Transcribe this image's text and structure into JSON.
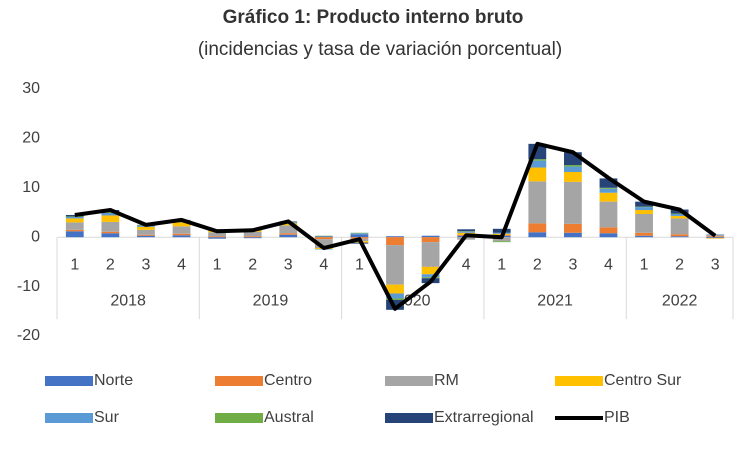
{
  "chart_data": {
    "type": "bar",
    "stacked": true,
    "title": "Gráfico 1: Producto interno bruto",
    "subtitle": "(incidencias y tasa de variación porcentual)",
    "groups": [
      {
        "label": "2018",
        "quarters": [
          "1",
          "2",
          "3",
          "4"
        ]
      },
      {
        "label": "2019",
        "quarters": [
          "1",
          "2",
          "3",
          "4"
        ]
      },
      {
        "label": "2020",
        "quarters": [
          "1",
          "2",
          "3",
          "4"
        ]
      },
      {
        "label": "2021",
        "quarters": [
          "1",
          "2",
          "3",
          "4"
        ]
      },
      {
        "label": "2022",
        "quarters": [
          "1",
          "2",
          "3"
        ]
      }
    ],
    "ylim": [
      -20,
      30
    ],
    "yticks": [
      -20,
      -10,
      0,
      10,
      20,
      30
    ],
    "series": [
      {
        "name": "Norte",
        "color": "#4472c4",
        "values": [
          1.2,
          0.8,
          0.3,
          0.4,
          -0.3,
          -0.2,
          0.5,
          0.2,
          0.6,
          0.2,
          0.3,
          0.3,
          0.3,
          1.0,
          0.9,
          0.8,
          0.3,
          0.2,
          -0.2
        ]
      },
      {
        "name": "Centro",
        "color": "#ed7d31",
        "values": [
          0.3,
          0.3,
          0.2,
          0.3,
          0.2,
          0.2,
          0.3,
          -0.4,
          -0.3,
          -1.6,
          -1.0,
          0.2,
          0.2,
          1.8,
          1.8,
          1.2,
          0.6,
          0.4,
          0.2
        ]
      },
      {
        "name": "RM",
        "color": "#a5a5a5",
        "values": [
          1.5,
          2.0,
          1.0,
          1.5,
          0.8,
          0.9,
          1.6,
          -1.8,
          -0.5,
          -8.0,
          -5.0,
          -0.5,
          -0.8,
          8.5,
          8.5,
          5.2,
          3.8,
          3.2,
          0.3
        ]
      },
      {
        "name": "Centro Sur",
        "color": "#ffc000",
        "values": [
          0.8,
          1.3,
          0.6,
          0.8,
          0.3,
          0.3,
          0.4,
          -0.2,
          -0.3,
          -1.8,
          -1.5,
          0.4,
          0.2,
          2.8,
          2.0,
          1.8,
          0.8,
          0.5,
          -0.1
        ]
      },
      {
        "name": "Sur",
        "color": "#5b9bd5",
        "values": [
          0.3,
          0.5,
          0.2,
          0.3,
          0.1,
          0.1,
          0.2,
          -0.1,
          0.2,
          -1.0,
          -0.6,
          0.2,
          0.2,
          1.4,
          1.1,
          0.8,
          0.6,
          0.4,
          0.1
        ]
      },
      {
        "name": "Austral",
        "color": "#70ad47",
        "values": [
          0.1,
          0.2,
          0.1,
          0.1,
          0.1,
          0.0,
          0.1,
          0.1,
          0.1,
          -0.3,
          -0.2,
          0.1,
          -0.2,
          0.3,
          0.3,
          0.2,
          0.1,
          0.1,
          0.0
        ]
      },
      {
        "name": "Extrarregional",
        "color": "#264478",
        "values": [
          0.3,
          0.4,
          0.1,
          0.1,
          0.1,
          0.1,
          0.1,
          0.0,
          -0.2,
          -2.0,
          -1.0,
          0.4,
          0.8,
          3.1,
          2.6,
          1.9,
          1.0,
          0.8,
          0.0
        ]
      },
      {
        "name": "PIB",
        "color": "#000000",
        "type": "line",
        "values": [
          4.5,
          5.5,
          2.5,
          3.5,
          1.2,
          1.4,
          3.2,
          -2.2,
          -0.4,
          -14.5,
          -9.0,
          0.4,
          0.0,
          18.9,
          17.2,
          12.0,
          7.2,
          5.6,
          0.3
        ]
      }
    ]
  }
}
